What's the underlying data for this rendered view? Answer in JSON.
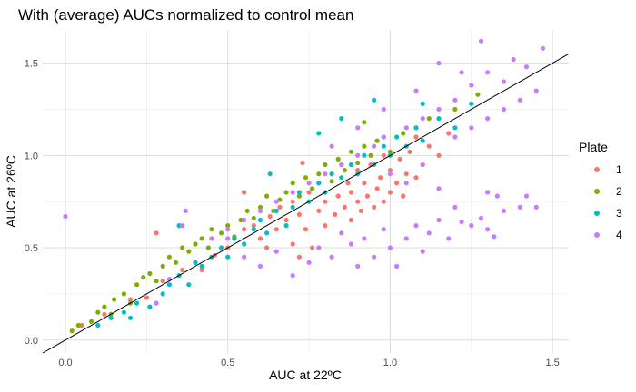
{
  "chart_data": {
    "type": "scatter",
    "title": "With (average) AUCs normalized to control mean",
    "xlabel": "AUC at 22ºC",
    "ylabel": "AUC at 26ºC",
    "xlim": [
      -0.07,
      1.55
    ],
    "ylim": [
      -0.07,
      1.68
    ],
    "x_ticks": [
      0.0,
      0.5,
      1.0,
      1.5
    ],
    "x_tick_labels": [
      "0.0",
      "0.5",
      "1.0",
      "1.5"
    ],
    "y_ticks": [
      0.0,
      0.5,
      1.0,
      1.5
    ],
    "y_tick_labels": [
      "0.0",
      "0.5",
      "1.0",
      "1.5"
    ],
    "grid": true,
    "legend": {
      "title": "Plate",
      "position": "right"
    },
    "reference_line": {
      "type": "identity",
      "slope": 1.0,
      "intercept": 0.0,
      "color": "#000000"
    },
    "series": [
      {
        "name": "1",
        "color": "#F8766D",
        "points": [
          [
            0.05,
            0.08
          ],
          [
            0.12,
            0.14
          ],
          [
            0.2,
            0.22
          ],
          [
            0.25,
            0.23
          ],
          [
            0.3,
            0.32
          ],
          [
            0.36,
            0.38
          ],
          [
            0.4,
            0.42
          ],
          [
            0.42,
            0.38
          ],
          [
            0.46,
            0.46
          ],
          [
            0.5,
            0.5
          ],
          [
            0.52,
            0.55
          ],
          [
            0.55,
            0.6
          ],
          [
            0.58,
            0.62
          ],
          [
            0.6,
            0.55
          ],
          [
            0.6,
            0.7
          ],
          [
            0.62,
            0.5
          ],
          [
            0.63,
            0.67
          ],
          [
            0.65,
            0.6
          ],
          [
            0.66,
            0.72
          ],
          [
            0.68,
            0.65
          ],
          [
            0.7,
            0.52
          ],
          [
            0.7,
            0.75
          ],
          [
            0.72,
            0.45
          ],
          [
            0.72,
            0.68
          ],
          [
            0.74,
            0.6
          ],
          [
            0.75,
            0.8
          ],
          [
            0.76,
            0.5
          ],
          [
            0.78,
            0.7
          ],
          [
            0.78,
            0.85
          ],
          [
            0.8,
            0.62
          ],
          [
            0.8,
            0.75
          ],
          [
            0.82,
            0.9
          ],
          [
            0.83,
            0.68
          ],
          [
            0.84,
            0.78
          ],
          [
            0.85,
            0.95
          ],
          [
            0.86,
            0.72
          ],
          [
            0.87,
            0.85
          ],
          [
            0.88,
            0.65
          ],
          [
            0.88,
            0.8
          ],
          [
            0.9,
            0.75
          ],
          [
            0.9,
            0.92
          ],
          [
            0.91,
            0.7
          ],
          [
            0.92,
            0.85
          ],
          [
            0.93,
            0.78
          ],
          [
            0.94,
            0.95
          ],
          [
            0.95,
            0.72
          ],
          [
            0.96,
            0.82
          ],
          [
            0.97,
            0.88
          ],
          [
            0.98,
            0.75
          ],
          [
            0.98,
            1.0
          ],
          [
            1.0,
            0.8
          ],
          [
            1.0,
            0.92
          ],
          [
            1.02,
            0.85
          ],
          [
            1.03,
            0.98
          ],
          [
            1.04,
            0.78
          ],
          [
            1.05,
            0.9
          ],
          [
            1.06,
            1.02
          ],
          [
            1.08,
            0.88
          ],
          [
            1.08,
            1.1
          ],
          [
            1.1,
            0.95
          ],
          [
            1.12,
            1.05
          ],
          [
            1.15,
            1.0
          ],
          [
            1.18,
            1.12
          ],
          [
            0.28,
            0.58
          ],
          [
            0.55,
            0.8
          ],
          [
            0.73,
            0.96
          ]
        ]
      },
      {
        "name": "2",
        "color": "#7CAE00",
        "points": [
          [
            0.02,
            0.05
          ],
          [
            0.04,
            0.08
          ],
          [
            0.08,
            0.1
          ],
          [
            0.1,
            0.15
          ],
          [
            0.12,
            0.18
          ],
          [
            0.14,
            0.14
          ],
          [
            0.15,
            0.22
          ],
          [
            0.18,
            0.25
          ],
          [
            0.2,
            0.2
          ],
          [
            0.22,
            0.3
          ],
          [
            0.24,
            0.34
          ],
          [
            0.26,
            0.36
          ],
          [
            0.28,
            0.32
          ],
          [
            0.3,
            0.4
          ],
          [
            0.32,
            0.45
          ],
          [
            0.34,
            0.42
          ],
          [
            0.36,
            0.5
          ],
          [
            0.38,
            0.48
          ],
          [
            0.4,
            0.52
          ],
          [
            0.42,
            0.55
          ],
          [
            0.44,
            0.5
          ],
          [
            0.45,
            0.6
          ],
          [
            0.48,
            0.58
          ],
          [
            0.5,
            0.62
          ],
          [
            0.52,
            0.56
          ],
          [
            0.54,
            0.65
          ],
          [
            0.56,
            0.7
          ],
          [
            0.58,
            0.66
          ],
          [
            0.6,
            0.72
          ],
          [
            0.62,
            0.78
          ],
          [
            0.64,
            0.7
          ],
          [
            0.66,
            0.76
          ],
          [
            0.68,
            0.8
          ],
          [
            0.7,
            0.85
          ],
          [
            0.72,
            0.78
          ],
          [
            0.74,
            0.88
          ],
          [
            0.76,
            0.82
          ],
          [
            0.78,
            0.9
          ],
          [
            0.8,
            0.95
          ],
          [
            0.82,
            0.86
          ],
          [
            0.84,
            0.98
          ],
          [
            0.86,
            0.92
          ],
          [
            0.88,
            1.02
          ],
          [
            0.9,
            0.96
          ],
          [
            0.92,
            1.05
          ],
          [
            0.94,
            1.0
          ],
          [
            0.96,
            1.08
          ],
          [
            0.98,
            1.1
          ],
          [
            1.0,
            1.02
          ],
          [
            1.04,
            1.12
          ],
          [
            1.08,
            1.15
          ],
          [
            1.12,
            1.2
          ],
          [
            1.2,
            1.25
          ],
          [
            1.27,
            1.33
          ],
          [
            0.92,
            1.18
          ]
        ]
      },
      {
        "name": "3",
        "color": "#00BFC4",
        "points": [
          [
            0.1,
            0.08
          ],
          [
            0.14,
            0.12
          ],
          [
            0.18,
            0.15
          ],
          [
            0.2,
            0.12
          ],
          [
            0.22,
            0.2
          ],
          [
            0.26,
            0.18
          ],
          [
            0.3,
            0.25
          ],
          [
            0.32,
            0.3
          ],
          [
            0.35,
            0.35
          ],
          [
            0.38,
            0.3
          ],
          [
            0.4,
            0.42
          ],
          [
            0.42,
            0.4
          ],
          [
            0.45,
            0.45
          ],
          [
            0.48,
            0.5
          ],
          [
            0.5,
            0.45
          ],
          [
            0.52,
            0.55
          ],
          [
            0.55,
            0.52
          ],
          [
            0.58,
            0.6
          ],
          [
            0.6,
            0.65
          ],
          [
            0.62,
            0.58
          ],
          [
            0.65,
            0.7
          ],
          [
            0.68,
            0.62
          ],
          [
            0.7,
            0.72
          ],
          [
            0.72,
            0.8
          ],
          [
            0.75,
            0.75
          ],
          [
            0.78,
            0.85
          ],
          [
            0.8,
            0.8
          ],
          [
            0.82,
            0.9
          ],
          [
            0.85,
            0.88
          ],
          [
            0.88,
            0.95
          ],
          [
            0.9,
            0.9
          ],
          [
            0.92,
            1.0
          ],
          [
            0.95,
            0.95
          ],
          [
            0.98,
            1.05
          ],
          [
            1.0,
            1.0
          ],
          [
            1.02,
            1.1
          ],
          [
            1.05,
            1.05
          ],
          [
            1.08,
            1.15
          ],
          [
            1.1,
            1.08
          ],
          [
            1.15,
            1.2
          ],
          [
            1.2,
            1.15
          ],
          [
            1.25,
            1.28
          ],
          [
            0.35,
            0.62
          ],
          [
            0.63,
            0.9
          ],
          [
            0.85,
            1.2
          ],
          [
            0.78,
            1.12
          ],
          [
            0.95,
            1.3
          ],
          [
            1.1,
            1.28
          ]
        ]
      },
      {
        "name": "4",
        "color": "#C77CFF",
        "points": [
          [
            0.0,
            0.67
          ],
          [
            0.28,
            0.2
          ],
          [
            0.32,
            0.33
          ],
          [
            0.36,
            0.62
          ],
          [
            0.37,
            0.7
          ],
          [
            0.5,
            0.55
          ],
          [
            0.55,
            0.45
          ],
          [
            0.6,
            0.4
          ],
          [
            0.65,
            0.48
          ],
          [
            0.7,
            0.35
          ],
          [
            0.75,
            0.42
          ],
          [
            0.78,
            0.5
          ],
          [
            0.82,
            0.45
          ],
          [
            0.85,
            0.58
          ],
          [
            0.88,
            0.52
          ],
          [
            0.9,
            0.4
          ],
          [
            0.92,
            0.55
          ],
          [
            0.95,
            0.45
          ],
          [
            0.98,
            0.6
          ],
          [
            1.0,
            0.5
          ],
          [
            1.02,
            0.4
          ],
          [
            1.05,
            0.55
          ],
          [
            1.08,
            0.62
          ],
          [
            1.1,
            0.48
          ],
          [
            1.12,
            0.58
          ],
          [
            1.15,
            0.65
          ],
          [
            1.18,
            0.55
          ],
          [
            1.2,
            0.72
          ],
          [
            1.22,
            0.64
          ],
          [
            1.25,
            0.62
          ],
          [
            1.28,
            0.66
          ],
          [
            1.3,
            0.6
          ],
          [
            1.32,
            0.56
          ],
          [
            1.35,
            0.7
          ],
          [
            1.4,
            0.72
          ],
          [
            1.42,
            0.78
          ],
          [
            1.45,
            0.72
          ],
          [
            1.3,
            0.8
          ],
          [
            1.33,
            0.78
          ],
          [
            1.15,
            0.82
          ],
          [
            1.0,
            0.9
          ],
          [
            1.05,
            0.85
          ],
          [
            1.1,
            0.95
          ],
          [
            1.2,
            1.1
          ],
          [
            1.25,
            1.15
          ],
          [
            1.3,
            1.2
          ],
          [
            1.35,
            1.25
          ],
          [
            1.4,
            1.3
          ],
          [
            1.45,
            1.35
          ],
          [
            1.35,
            1.4
          ],
          [
            1.3,
            1.45
          ],
          [
            1.28,
            1.62
          ],
          [
            1.47,
            1.58
          ],
          [
            1.42,
            1.48
          ],
          [
            1.38,
            1.52
          ],
          [
            1.25,
            1.38
          ],
          [
            1.2,
            1.3
          ],
          [
            1.15,
            1.25
          ],
          [
            1.1,
            1.2
          ],
          [
            1.05,
            1.15
          ],
          [
            0.98,
            1.1
          ],
          [
            0.95,
            1.05
          ],
          [
            0.9,
            1.0
          ],
          [
            0.85,
            0.95
          ],
          [
            0.8,
            0.9
          ],
          [
            0.75,
            0.85
          ],
          [
            0.7,
            0.8
          ],
          [
            0.65,
            0.75
          ],
          [
            0.6,
            0.7
          ],
          [
            0.55,
            0.65
          ],
          [
            0.5,
            0.6
          ],
          [
            0.45,
            0.55
          ],
          [
            1.15,
            1.5
          ],
          [
            1.08,
            1.35
          ],
          [
            0.98,
            1.25
          ],
          [
            1.22,
            1.45
          ],
          [
            0.9,
            1.15
          ],
          [
            0.82,
            1.05
          ]
        ]
      }
    ]
  }
}
